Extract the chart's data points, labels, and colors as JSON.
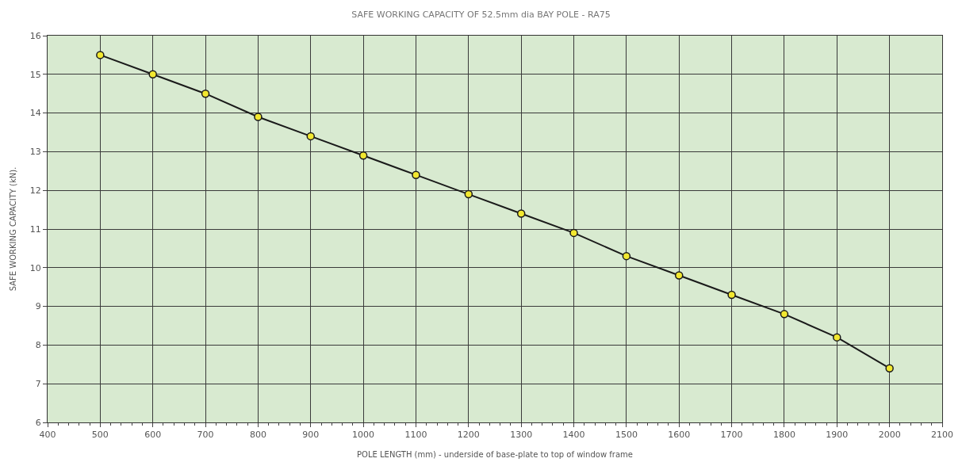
{
  "chart_data": {
    "type": "line",
    "title": "SAFE WORKING CAPACITY OF 52.5mm dia BAY POLE - RA75",
    "xlabel": "POLE LENGTH (mm) - underside of base-plate to top of window frame",
    "ylabel": "SAFE WORKING CAPACITY (kN).",
    "x": [
      500,
      600,
      700,
      800,
      900,
      1000,
      1100,
      1200,
      1300,
      1400,
      1500,
      1600,
      1700,
      1800,
      1900,
      2000
    ],
    "series": [
      {
        "color": "#1a1a1a",
        "values": [
          15.5,
          15.0,
          14.5,
          13.9,
          13.4,
          12.9,
          12.4,
          11.9,
          11.4,
          10.9,
          10.3,
          9.8,
          9.3,
          8.8,
          8.2,
          7.4
        ]
      }
    ],
    "xlim": [
      400,
      2100
    ],
    "xticks": [
      400,
      500,
      600,
      700,
      800,
      900,
      1000,
      1100,
      1200,
      1300,
      1400,
      1500,
      1600,
      1700,
      1800,
      1900,
      2000,
      2100
    ],
    "ylim": [
      6,
      16
    ],
    "yticks": [
      6,
      7,
      8,
      9,
      10,
      11,
      12,
      13,
      14,
      15,
      16
    ],
    "grid": true,
    "marker": "circle",
    "line_style": "solid"
  }
}
